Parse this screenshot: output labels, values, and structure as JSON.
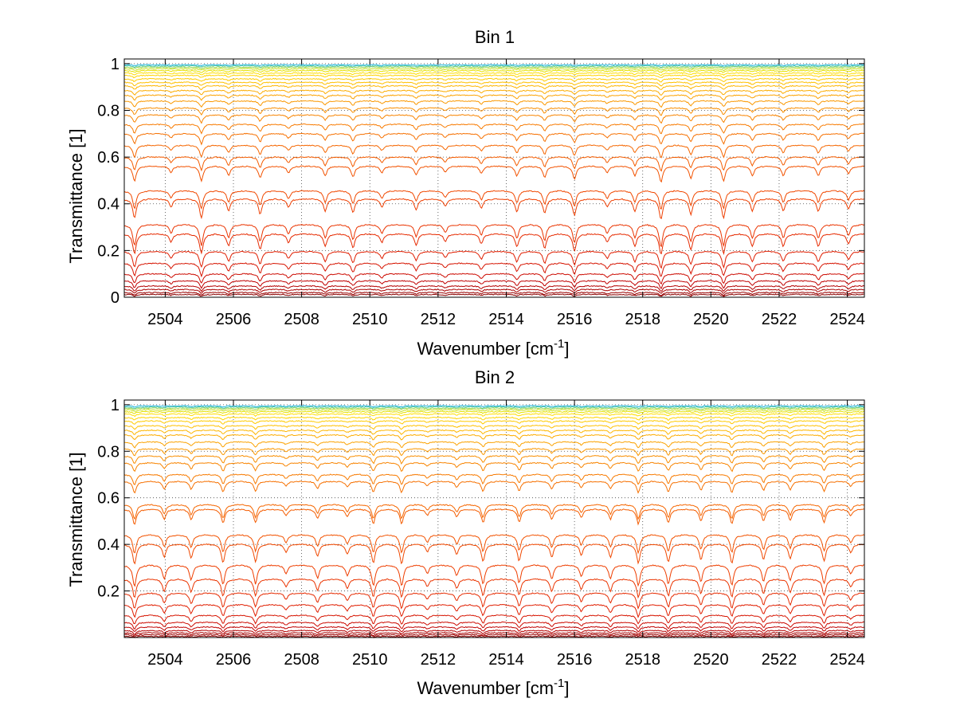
{
  "chart_data": [
    {
      "type": "line",
      "title": "Bin 1",
      "xlabel": "Wavenumber [cm",
      "xlabel_sup": "-1",
      "xlabel_end": "]",
      "ylabel": "Transmittance [1]",
      "xlim": [
        2502.8,
        2524.5
      ],
      "ylim": [
        0,
        1.02
      ],
      "x_ticks": [
        2504,
        2506,
        2508,
        2510,
        2512,
        2514,
        2516,
        2518,
        2520,
        2522,
        2524
      ],
      "x_tick_labels": [
        "2504",
        "2506",
        "2508",
        "2510",
        "2512",
        "2514",
        "2516",
        "2518",
        "2520",
        "2522",
        "2524"
      ],
      "y_ticks": [
        0,
        0.2,
        0.4,
        0.6,
        0.8,
        1
      ],
      "y_tick_labels": [
        "0",
        "0.2",
        "0.4",
        "0.6",
        "0.8",
        "1"
      ],
      "grid": true,
      "line_width": 1,
      "series_baselines": [
        0.012,
        0.02,
        0.033,
        0.048,
        0.07,
        0.1,
        0.145,
        0.195,
        0.27,
        0.31,
        0.42,
        0.455,
        0.56,
        0.6,
        0.65,
        0.7,
        0.74,
        0.78,
        0.81,
        0.84,
        0.865,
        0.885,
        0.905,
        0.92,
        0.935,
        0.95,
        0.96,
        0.97,
        0.978,
        0.985,
        0.99,
        0.995
      ],
      "series_colors": [
        "#8b0000",
        "#9a0000",
        "#a80000",
        "#b40000",
        "#c00000",
        "#cc0a00",
        "#d61400",
        "#e01e00",
        "#e62a00",
        "#ea3400",
        "#ee3e00",
        "#f04800",
        "#f25200",
        "#f45c00",
        "#f56600",
        "#f67000",
        "#f77a00",
        "#f88400",
        "#f98e00",
        "#fa9800",
        "#fba200",
        "#fcac00",
        "#fdb600",
        "#fec000",
        "#ffca00",
        "#ffd400",
        "#ffde00",
        "#e6e000",
        "#c8e020",
        "#9ad850",
        "#5ac8a0",
        "#20b8e0"
      ]
    },
    {
      "type": "line",
      "title": "Bin 2",
      "xlabel": "Wavenumber [cm",
      "xlabel_sup": "-1",
      "xlabel_end": "]",
      "ylabel": "Transmittance [1]",
      "xlim": [
        2502.8,
        2524.5
      ],
      "ylim": [
        0,
        1.02
      ],
      "x_ticks": [
        2504,
        2506,
        2508,
        2510,
        2512,
        2514,
        2516,
        2518,
        2520,
        2522,
        2524
      ],
      "x_tick_labels": [
        "2504",
        "2506",
        "2508",
        "2510",
        "2512",
        "2514",
        "2516",
        "2518",
        "2520",
        "2522",
        "2524"
      ],
      "y_ticks": [
        0.2,
        0.4,
        0.6,
        0.8,
        1
      ],
      "y_tick_labels": [
        "0.2",
        "0.4",
        "0.6",
        "0.8",
        "1"
      ],
      "grid": true,
      "line_width": 1,
      "series_baselines": [
        0.005,
        0.012,
        0.02,
        0.03,
        0.045,
        0.065,
        0.095,
        0.14,
        0.19,
        0.25,
        0.31,
        0.4,
        0.44,
        0.55,
        0.57,
        0.67,
        0.7,
        0.75,
        0.78,
        0.81,
        0.84,
        0.87,
        0.89,
        0.91,
        0.93,
        0.945,
        0.96,
        0.97,
        0.978,
        0.985,
        0.99,
        0.995
      ],
      "series_colors": [
        "#8b0000",
        "#9a0000",
        "#a80000",
        "#b40000",
        "#c00000",
        "#cc0a00",
        "#d61400",
        "#e01e00",
        "#e62a00",
        "#ea3400",
        "#ee3e00",
        "#f04800",
        "#f25200",
        "#f45c00",
        "#f56600",
        "#f67000",
        "#f77a00",
        "#f88400",
        "#f98e00",
        "#fa9800",
        "#fba200",
        "#fcac00",
        "#fdb600",
        "#fec000",
        "#ffca00",
        "#ffd400",
        "#ffde00",
        "#e6e000",
        "#c8e020",
        "#9ad850",
        "#5ac8a0",
        "#20b8e0"
      ]
    }
  ]
}
